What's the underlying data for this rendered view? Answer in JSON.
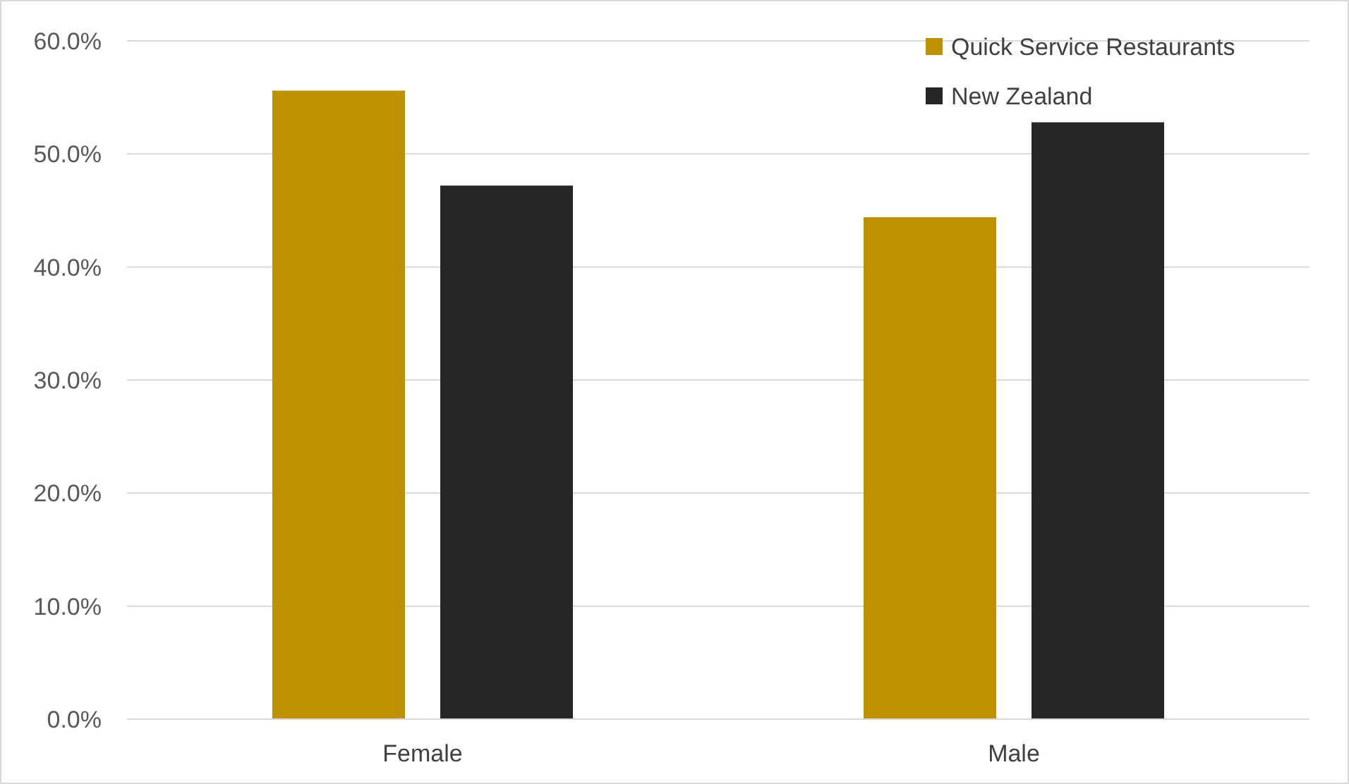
{
  "chart_data": {
    "type": "bar",
    "categories": [
      "Female",
      "Male"
    ],
    "series": [
      {
        "name": "Quick Service Restaurants",
        "color": "#bf9000",
        "values": [
          55.6,
          44.4
        ]
      },
      {
        "name": "New Zealand",
        "color": "#262626",
        "values": [
          47.2,
          52.8
        ]
      }
    ],
    "ylim": [
      0,
      60
    ],
    "yticks": [
      {
        "value": 0,
        "label": "0.0%"
      },
      {
        "value": 10,
        "label": "10.0%"
      },
      {
        "value": 20,
        "label": "20.0%"
      },
      {
        "value": 30,
        "label": "30.0%"
      },
      {
        "value": 40,
        "label": "40.0%"
      },
      {
        "value": 50,
        "label": "50.0%"
      },
      {
        "value": 60,
        "label": "60.0%"
      }
    ],
    "grid": "y",
    "legend": "top right"
  }
}
